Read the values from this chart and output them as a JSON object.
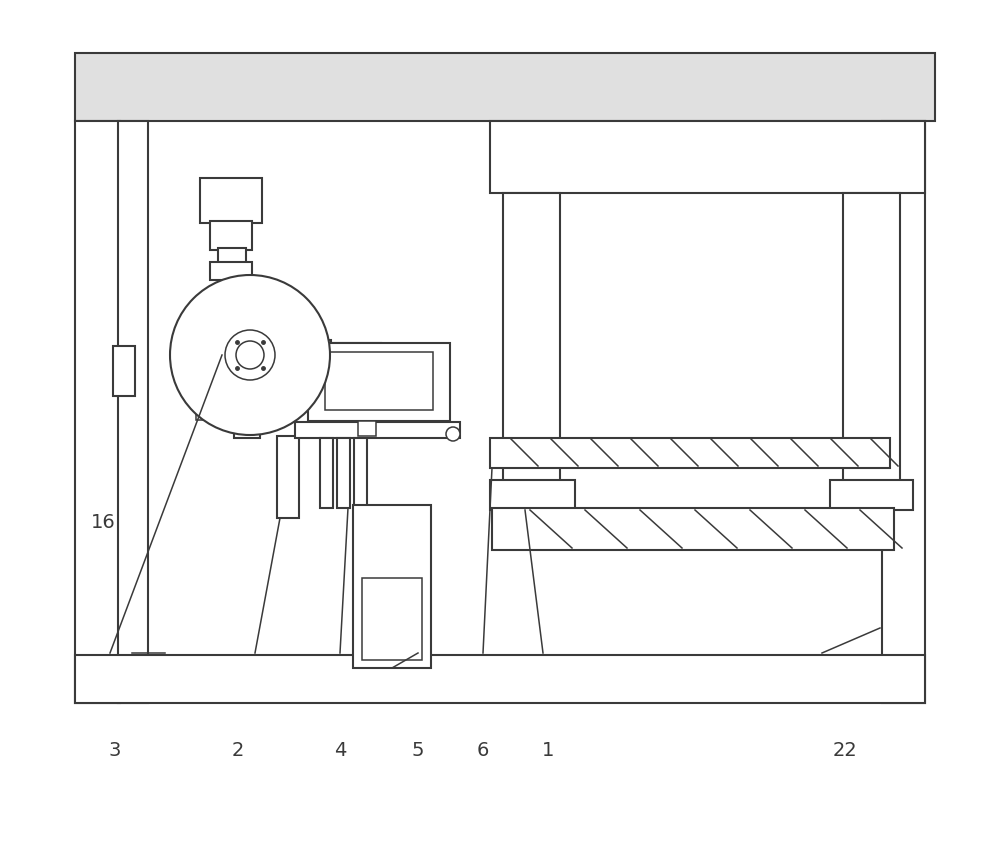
{
  "bg_color": "#ffffff",
  "lc": "#3a3a3a",
  "lw": 1.5,
  "lw_thin": 1.1,
  "fig_width": 10.0,
  "fig_height": 8.58
}
